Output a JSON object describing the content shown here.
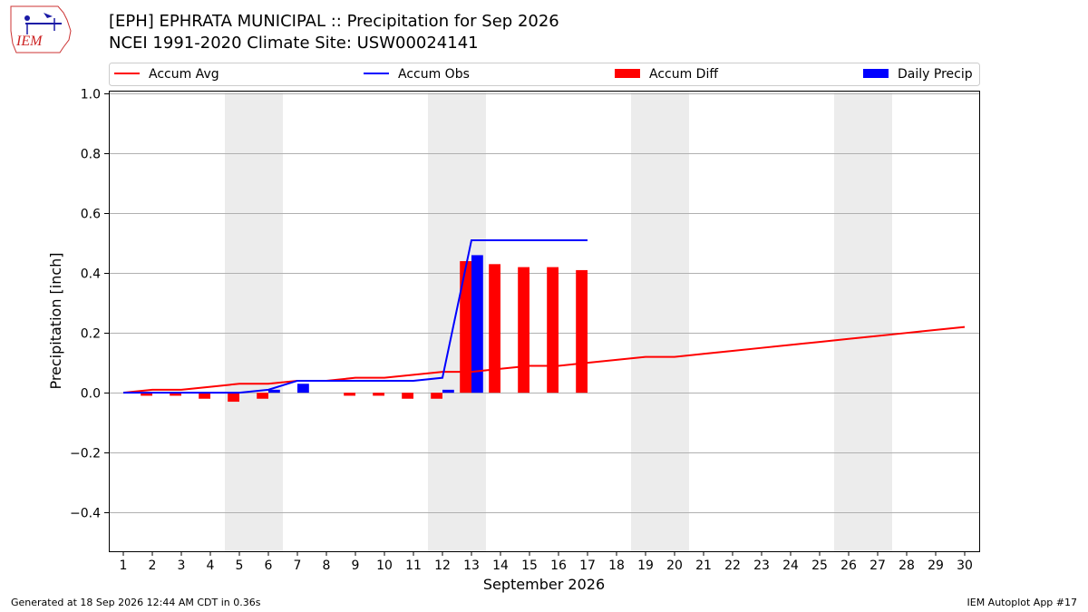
{
  "header": {
    "logo_text": "IEM",
    "title_line1": "[EPH] EPHRATA MUNICIPAL :: Precipitation for Sep 2026",
    "title_line2": "NCEI 1991-2020 Climate Site: USW00024141"
  },
  "footer": {
    "generated": "Generated at 18 Sep 2026 12:44 AM CDT in 0.36s",
    "app": "IEM Autoplot App #17"
  },
  "chart_data": {
    "type": "bar",
    "title": "[EPH] EPHRATA MUNICIPAL :: Precipitation for Sep 2026",
    "subtitle": "NCEI 1991-2020 Climate Site: USW00024141",
    "xlabel": "September 2026",
    "ylabel": "Precipitation [inch]",
    "xlim": [
      0.5,
      30.5
    ],
    "ylim": [
      -0.53,
      1.01
    ],
    "x_ticks": [
      1,
      2,
      3,
      4,
      5,
      6,
      7,
      8,
      9,
      10,
      11,
      12,
      13,
      14,
      15,
      16,
      17,
      18,
      19,
      20,
      21,
      22,
      23,
      24,
      25,
      26,
      27,
      28,
      29,
      30
    ],
    "y_ticks": [
      -0.4,
      -0.2,
      0.0,
      0.2,
      0.4,
      0.6,
      0.8,
      1.0
    ],
    "y_tick_labels": [
      "−0.4",
      "−0.2",
      "0.0",
      "0.2",
      "0.4",
      "0.6",
      "0.8",
      "1.0"
    ],
    "grid": "horizontal",
    "legend_position": "top",
    "weekend_shading": [
      [
        4.5,
        6.5
      ],
      [
        11.5,
        13.5
      ],
      [
        18.5,
        20.5
      ],
      [
        25.5,
        27.5
      ]
    ],
    "colors": {
      "avg": "#ff0000",
      "obs": "#0000ff",
      "diff": "#ff0000",
      "daily": "#0000ff",
      "shade": "#ececec",
      "grid": "#b0b0b0"
    },
    "series": [
      {
        "name": "Accum Avg",
        "kind": "line",
        "x": [
          1,
          2,
          3,
          4,
          5,
          6,
          7,
          8,
          9,
          10,
          11,
          12,
          13,
          14,
          15,
          16,
          17,
          18,
          19,
          20,
          21,
          22,
          23,
          24,
          25,
          26,
          27,
          28,
          29,
          30
        ],
        "values": [
          0.0,
          0.01,
          0.01,
          0.02,
          0.03,
          0.03,
          0.04,
          0.04,
          0.05,
          0.05,
          0.06,
          0.07,
          0.07,
          0.08,
          0.09,
          0.09,
          0.1,
          0.11,
          0.12,
          0.12,
          0.13,
          0.14,
          0.15,
          0.16,
          0.17,
          0.18,
          0.19,
          0.2,
          0.21,
          0.22
        ]
      },
      {
        "name": "Accum Obs",
        "kind": "line",
        "x": [
          1,
          2,
          3,
          4,
          5,
          6,
          7,
          8,
          9,
          10,
          11,
          12,
          13,
          14,
          15,
          16,
          17
        ],
        "values": [
          0.0,
          0.0,
          0.0,
          0.0,
          0.0,
          0.01,
          0.04,
          0.04,
          0.04,
          0.04,
          0.04,
          0.05,
          0.51,
          0.51,
          0.51,
          0.51,
          0.51
        ]
      },
      {
        "name": "Accum Diff",
        "kind": "bar",
        "x": [
          1,
          2,
          3,
          4,
          5,
          6,
          7,
          8,
          9,
          10,
          11,
          12,
          13,
          14,
          15,
          16,
          17
        ],
        "values": [
          0.0,
          -0.01,
          -0.01,
          -0.02,
          -0.03,
          -0.02,
          0.0,
          0.0,
          -0.01,
          -0.01,
          -0.02,
          -0.02,
          0.44,
          0.43,
          0.42,
          0.42,
          0.41
        ]
      },
      {
        "name": "Daily Precip",
        "kind": "bar",
        "x": [
          1,
          2,
          3,
          4,
          5,
          6,
          7,
          8,
          9,
          10,
          11,
          12,
          13,
          14,
          15,
          16,
          17
        ],
        "values": [
          0,
          0,
          0,
          0,
          0,
          0.01,
          0.03,
          0,
          0,
          0,
          0,
          0.01,
          0.46,
          0,
          0,
          0,
          0
        ]
      }
    ]
  }
}
